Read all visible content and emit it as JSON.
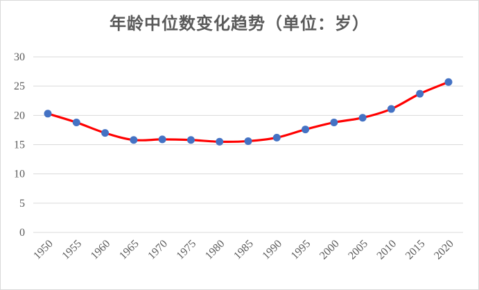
{
  "chart_data": {
    "type": "line",
    "title": "年龄中位数变化趋势（单位：岁）",
    "xlabel": "",
    "ylabel": "",
    "x": [
      "1950",
      "1955",
      "1960",
      "1965",
      "1970",
      "1975",
      "1980",
      "1985",
      "1990",
      "1995",
      "2000",
      "2005",
      "2010",
      "2015",
      "2020"
    ],
    "series": [
      {
        "values": [
          20.3,
          18.8,
          17.0,
          15.8,
          15.9,
          15.8,
          15.5,
          15.6,
          16.2,
          17.6,
          18.8,
          19.6,
          21.1,
          23.7,
          25.7
        ],
        "line_color": "#ff0000",
        "marker_color": "#4472c4"
      }
    ],
    "ylim": [
      0,
      30
    ],
    "yticks": [
      "0",
      "5",
      "10",
      "15",
      "20",
      "25",
      "30"
    ],
    "grid": true,
    "legend": "none"
  }
}
